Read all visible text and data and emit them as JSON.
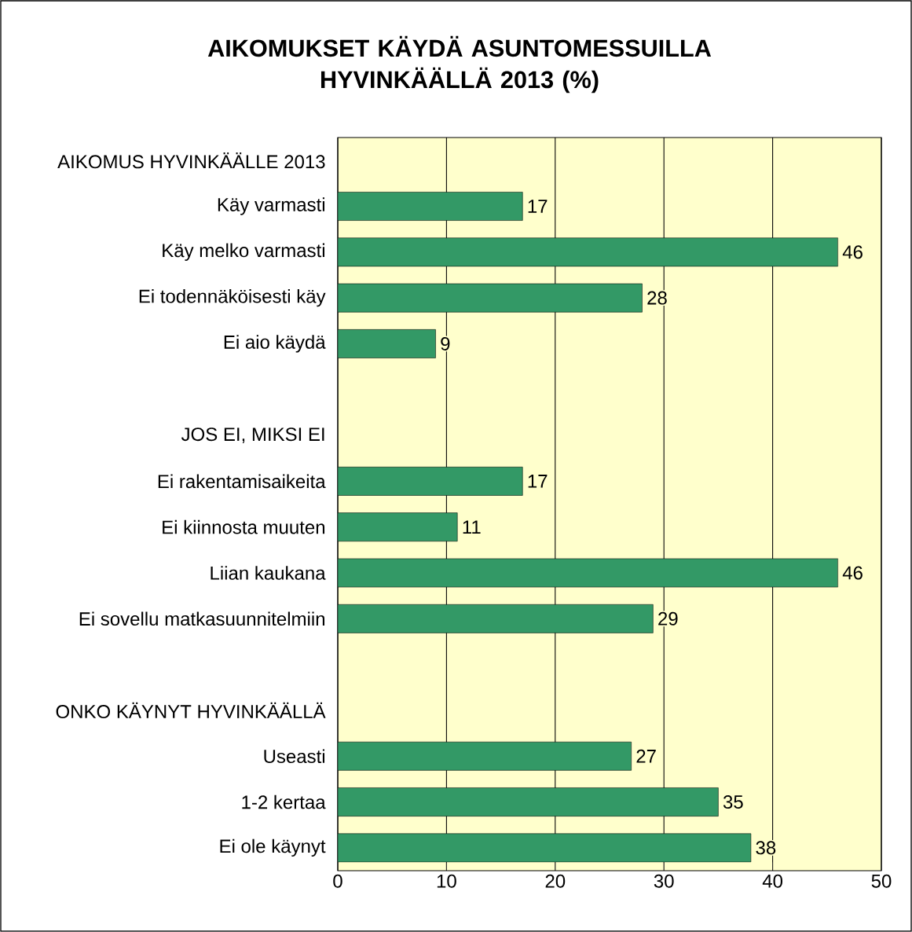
{
  "chart_data": {
    "type": "bar",
    "orientation": "horizontal",
    "title": "AIKOMUKSET KÄYDÄ ASUNTOMESSUILLA HYVINKÄÄLLÄ 2013 (%)",
    "categories": [
      "AIKOMUS HYVINKÄÄLLE 2013",
      "Käy varmasti",
      "Käy melko varmasti",
      "Ei todennäköisesti käy",
      "Ei aio käydä",
      null,
      "JOS EI, MIKSI EI",
      "Ei rakentamisaikeita",
      "Ei kiinnosta muuten",
      "Liian kaukana",
      "Ei sovellu matkasuunnitelmiin",
      null,
      "ONKO KÄYNYT HYVINKÄÄLLÄ",
      "Useasti",
      "1-2 kertaa",
      "Ei ole käynyt"
    ],
    "values": [
      null,
      17,
      46,
      28,
      9,
      null,
      null,
      17,
      11,
      46,
      29,
      null,
      null,
      27,
      35,
      38
    ],
    "color": "#339966",
    "data_labels": true,
    "xlim": [
      0,
      50
    ],
    "xticks": [
      0,
      10,
      20,
      30,
      40,
      50
    ],
    "grid": "x"
  }
}
